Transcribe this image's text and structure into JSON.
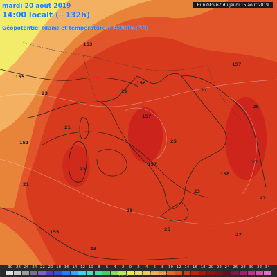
{
  "header": {
    "date_line": "mardi 20 août 2019",
    "time_line": "14:00 localt (+132h)",
    "field_line": "Géopotentiel (dam) et température à 850hPa (°C)",
    "run_line": "Run GFS 6Z du jeudi 15 août 2019"
  },
  "colors": {
    "pale_yellow": "#f3ec6a",
    "orange_light": "#f2b060",
    "orange": "#e8833a",
    "red_orange": "#e2552a",
    "red": "#d83a1e",
    "deep_red": "#c4141a",
    "sea_outline": "#222222"
  },
  "map_labels": [
    {
      "text": "155"
    },
    {
      "text": "153"
    },
    {
      "text": "156"
    },
    {
      "text": "157"
    },
    {
      "text": "157"
    },
    {
      "text": "151"
    },
    {
      "text": "158"
    },
    {
      "text": "157"
    },
    {
      "text": "155"
    },
    {
      "text": "23"
    },
    {
      "text": "21"
    },
    {
      "text": "27"
    },
    {
      "text": "25"
    },
    {
      "text": "21"
    },
    {
      "text": "25"
    },
    {
      "text": "23"
    },
    {
      "text": "27"
    },
    {
      "text": "21"
    },
    {
      "text": "23"
    },
    {
      "text": "27"
    },
    {
      "text": "25"
    },
    {
      "text": "25"
    },
    {
      "text": "27"
    },
    {
      "text": "23"
    }
  ],
  "legend": {
    "ticks": [
      "-30",
      "-28",
      "-26",
      "-24",
      "-22",
      "-20",
      "-18",
      "-16",
      "-14",
      "-12",
      "-10",
      "-8",
      "-6",
      "-4",
      "-2",
      "0",
      "2",
      "4",
      "6",
      "8",
      "10",
      "12",
      "14",
      "16",
      "18",
      "20",
      "22",
      "24",
      "26",
      "28",
      "30",
      "32",
      "34"
    ],
    "colors": [
      "#e0e0e0",
      "#c8c8c8",
      "#a0a0a0",
      "#807090",
      "#8060c0",
      "#5040d0",
      "#3050e0",
      "#2080ff",
      "#30a8ff",
      "#40d0ff",
      "#40e0d0",
      "#40e0a0",
      "#40d060",
      "#70e040",
      "#b0f040",
      "#f0f040",
      "#f8e040",
      "#f8c840",
      "#f0a838",
      "#f08830",
      "#e86828",
      "#e05020",
      "#d83818",
      "#c82010",
      "#b01010",
      "#981010",
      "#801018",
      "#601020",
      "#801850",
      "#a02070",
      "#c03090",
      "#d050b0",
      "#e070d0"
    ],
    "copyright": "©Copyright 2019 Meteociel.fr"
  }
}
